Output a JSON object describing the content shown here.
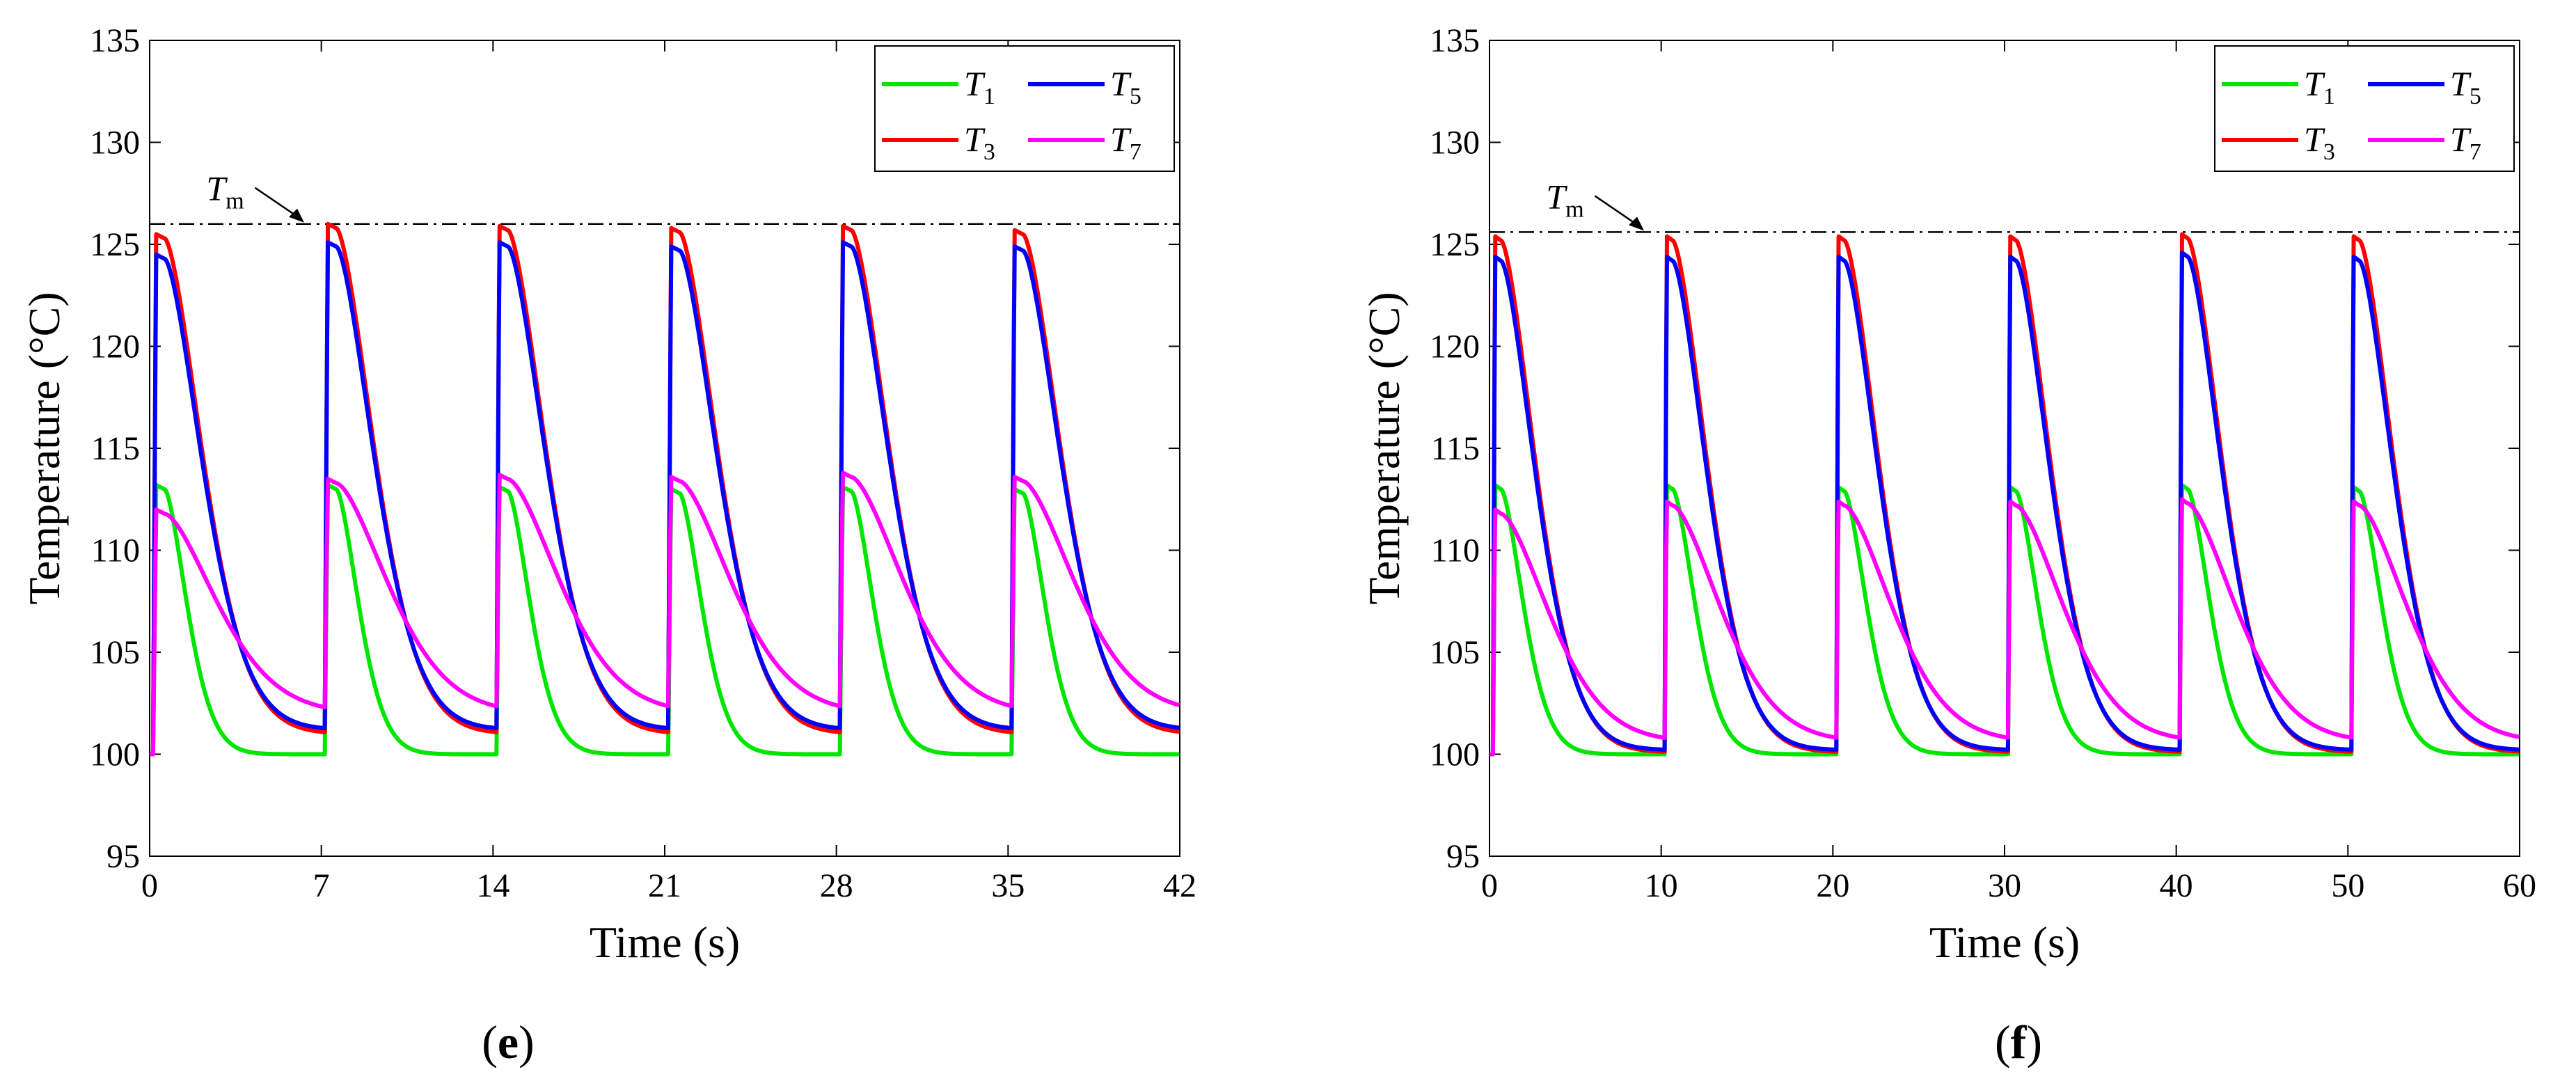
{
  "chart_data": [
    {
      "type": "line",
      "panel_label": "(e)",
      "xlabel": "Time (s)",
      "ylabel": "Temperature (°C)",
      "xlim": [
        0,
        42
      ],
      "ylim": [
        95,
        135
      ],
      "xticks": [
        0,
        7,
        14,
        21,
        28,
        35,
        42
      ],
      "yticks": [
        95,
        100,
        105,
        110,
        115,
        120,
        125,
        130,
        135
      ],
      "grid": false,
      "legend_position": "top-right",
      "period": 7,
      "reference_line": {
        "label": "T",
        "label_sub": "m",
        "value": 126.0
      },
      "series": [
        {
          "name": "T1",
          "symbol": "T",
          "sub": "1",
          "color": "#00e600",
          "peaks": [
            113.2,
            113.2,
            113.1,
            113.0,
            113.1,
            113.0
          ],
          "min": 100.0,
          "tau": 1.3
        },
        {
          "name": "T3",
          "symbol": "T",
          "sub": "3",
          "color": "#ff0000",
          "peaks": [
            125.5,
            126.0,
            125.9,
            125.8,
            125.9,
            125.7
          ],
          "min": 101.0,
          "tau": 2.2
        },
        {
          "name": "T5",
          "symbol": "T",
          "sub": "5",
          "color": "#0000ff",
          "peaks": [
            124.5,
            125.1,
            125.1,
            124.9,
            125.1,
            124.9
          ],
          "min": 101.2,
          "tau": 2.2
        },
        {
          "name": "T7",
          "symbol": "T",
          "sub": "7",
          "color": "#ff00ff",
          "peaks": [
            112.0,
            113.5,
            113.7,
            113.6,
            113.8,
            113.6
          ],
          "min": 102.0,
          "tau": 3.0
        }
      ]
    },
    {
      "type": "line",
      "panel_label": "(f)",
      "xlabel": "Time (s)",
      "ylabel": "Temperature (°C)",
      "xlim": [
        0,
        60
      ],
      "ylim": [
        95,
        135
      ],
      "xticks": [
        0,
        10,
        20,
        30,
        40,
        50,
        60
      ],
      "yticks": [
        95,
        100,
        105,
        110,
        115,
        120,
        125,
        130,
        135
      ],
      "grid": false,
      "legend_position": "top-right",
      "period": 10,
      "reference_line": {
        "label": "T",
        "label_sub": "m",
        "value": 125.6
      },
      "series": [
        {
          "name": "T1",
          "symbol": "T",
          "sub": "1",
          "color": "#00e600",
          "peaks": [
            113.2,
            113.2,
            113.1,
            113.1,
            113.2,
            113.1
          ],
          "min": 100.0,
          "tau": 1.3
        },
        {
          "name": "T3",
          "symbol": "T",
          "sub": "3",
          "color": "#ff0000",
          "peaks": [
            125.4,
            125.4,
            125.4,
            125.4,
            125.5,
            125.4
          ],
          "min": 100.1,
          "tau": 2.0
        },
        {
          "name": "T5",
          "symbol": "T",
          "sub": "5",
          "color": "#0000ff",
          "peaks": [
            124.4,
            124.4,
            124.4,
            124.4,
            124.6,
            124.4
          ],
          "min": 100.2,
          "tau": 2.0
        },
        {
          "name": "T7",
          "symbol": "T",
          "sub": "7",
          "color": "#ff00ff",
          "peaks": [
            112.0,
            112.4,
            112.4,
            112.4,
            112.5,
            112.4
          ],
          "min": 100.6,
          "tau": 2.8
        }
      ]
    }
  ]
}
